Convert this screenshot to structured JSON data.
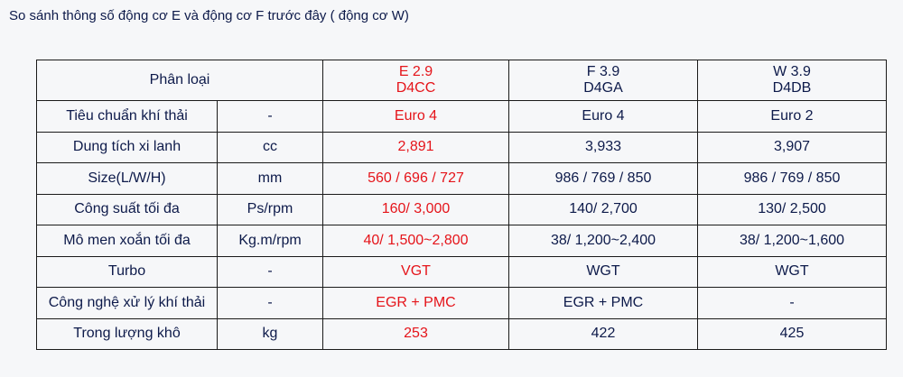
{
  "title": "So sánh thông số động cơ E và động cơ F trước đây ( động cơ W)",
  "header": {
    "category_label": "Phân loại",
    "engines": [
      {
        "name": "E 2.9",
        "code": "D4CC",
        "highlight": true
      },
      {
        "name": "F 3.9",
        "code": "D4GA",
        "highlight": false
      },
      {
        "name": "W 3.9",
        "code": "D4DB",
        "highlight": false
      }
    ]
  },
  "rows": [
    {
      "label": "Tiêu chuẩn khí thải",
      "unit": "-",
      "e": "Euro 4",
      "f": "Euro 4",
      "w": "Euro 2"
    },
    {
      "label": "Dung tích xi lanh",
      "unit": "cc",
      "e": "2,891",
      "f": "3,933",
      "w": "3,907"
    },
    {
      "label": "Size(L/W/H)",
      "unit": "mm",
      "e": "560 / 696 / 727",
      "f": "986 / 769 / 850",
      "w": "986 / 769 / 850"
    },
    {
      "label": "Công suất tối đa",
      "unit": "Ps/rpm",
      "e": "160/ 3,000",
      "f": "140/ 2,700",
      "w": "130/ 2,500"
    },
    {
      "label": "Mô men xoắn tối đa",
      "unit": "Kg.m/rpm",
      "e": "40/ 1,500~2,800",
      "f": "38/ 1,200~2,400",
      "w": "38/ 1,200~1,600"
    },
    {
      "label": "Turbo",
      "unit": "-",
      "e": "VGT",
      "f": "WGT",
      "w": "WGT"
    },
    {
      "label": "Công nghệ xử lý khí thải",
      "unit": "-",
      "e": "EGR + PMC",
      "f": "EGR + PMC",
      "w": "-"
    },
    {
      "label": "Trong lượng khô",
      "unit": "kg",
      "e": "253",
      "f": "422",
      "w": "425"
    }
  ],
  "colors": {
    "highlight": "#e5141a",
    "text": "#0d1a4a",
    "border": "#1a1a1a",
    "background": "#f6f7f9"
  }
}
